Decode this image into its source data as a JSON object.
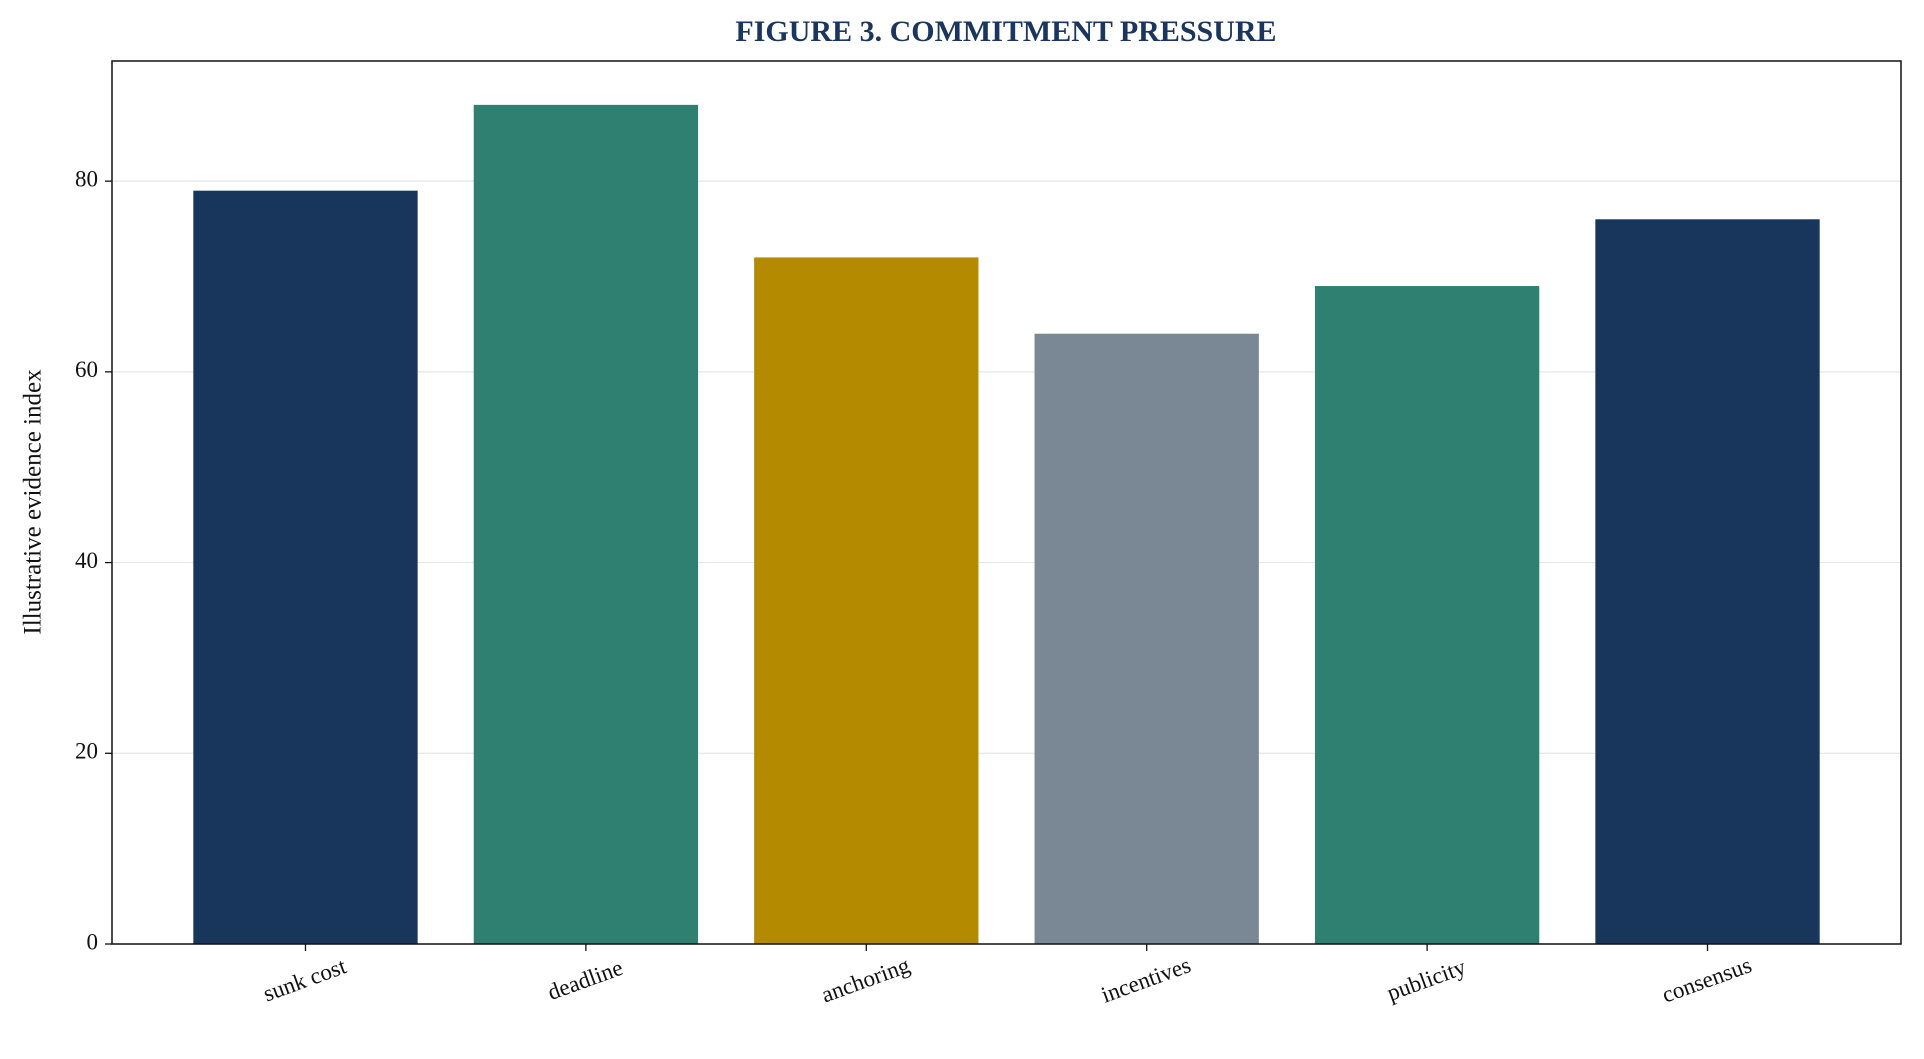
{
  "chart_data": {
    "type": "bar",
    "title": "FIGURE 3. COMMITMENT PRESSURE",
    "ylabel": "Illustrative evidence index",
    "categories": [
      "sunk cost",
      "deadline",
      "anchoring",
      "incentives",
      "publicity",
      "consensus"
    ],
    "values": [
      79,
      88,
      72,
      64,
      69,
      76
    ],
    "colors": [
      "#18365c",
      "#2f8070",
      "#b38a00",
      "#7a8795",
      "#2f8070",
      "#18365c"
    ],
    "ylim": [
      0,
      92.6
    ],
    "yticks": [
      0,
      20,
      40,
      60,
      80
    ],
    "grid": true
  }
}
